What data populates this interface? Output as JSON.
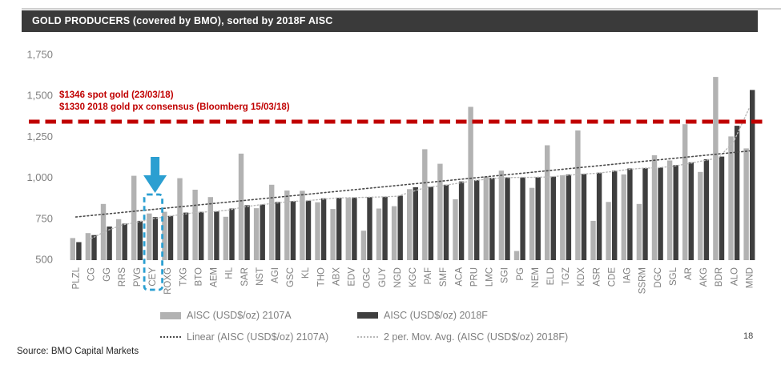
{
  "slide": {
    "title": "GOLD PRODUCERS (covered by BMO), sorted by 2018F AISC",
    "source": "Source: BMO Capital Markets",
    "page_number": "18"
  },
  "annotations": {
    "spot_gold": "$1346 spot gold (23/03/18)",
    "consensus": "$1330 2018 gold px consensus (Bloomberg 15/03/18)"
  },
  "legend": {
    "series_2017a": "AISC (USD$/oz) 2107A",
    "series_2018f": "AISC (USD$/oz) 2018F",
    "linear": "Linear (AISC (USD$/oz) 2107A)",
    "mov_avg": "2 per. Mov. Avg. (AISC (USD$/oz) 2018F)"
  },
  "highlight": {
    "category": "CEY"
  },
  "colors": {
    "title_bar_bg": "#3a3a3a",
    "bar_2017a": "#b2b2b2",
    "bar_2018f": "#3f3f3f",
    "reference_line": "#C00000",
    "highlight_blue": "#2B9FD1",
    "axis_text": "#7f7f7f",
    "trend_linear": "#4a4a4a",
    "trend_mov_avg": "#b8b8b8"
  },
  "chart_data": {
    "type": "bar",
    "title": "GOLD PRODUCERS (covered by BMO), sorted by 2018F AISC",
    "xlabel": "",
    "ylabel": "AISC (USD$/oz)",
    "ylim": [
      500,
      1750
    ],
    "y_ticks": [
      500,
      750,
      1000,
      1250,
      1500,
      1750
    ],
    "grid": false,
    "legend_position": "bottom",
    "categories": [
      "PLZL",
      "CG",
      "GG",
      "RRS",
      "PVG",
      "CEY",
      "ROXG",
      "TXG",
      "BTO",
      "AEM",
      "HL",
      "SAR",
      "NST",
      "AGI",
      "GSC",
      "KL",
      "THO",
      "ABX",
      "EDV",
      "OGC",
      "GUY",
      "NGD",
      "KGC",
      "PAF",
      "SMF",
      "ACA",
      "PRU",
      "LMC",
      "SGI",
      "PG",
      "NEM",
      "ELD",
      "TGZ",
      "KDX",
      "ASR",
      "CDE",
      "IAG",
      "SSRM",
      "DGC",
      "SGL",
      "AR",
      "AKG",
      "BDR",
      "ALO",
      "MND"
    ],
    "series": [
      {
        "name": "AISC (USD$/oz) 2107A",
        "values": [
          630,
          660,
          838,
          745,
          1010,
          780,
          790,
          995,
          925,
          880,
          760,
          1145,
          812,
          955,
          920,
          918,
          848,
          807,
          875,
          675,
          810,
          824,
          928,
          1172,
          1083,
          866,
          1430,
          1005,
          1041,
          551,
          936,
          1196,
          1013,
          1286,
          735,
          850,
          1018,
          838,
          1135,
          1103,
          1324,
          1033,
          1613,
          1250,
          1177
        ]
      },
      {
        "name": "AISC (USD$/oz) 2018F",
        "values": [
          605,
          648,
          700,
          718,
          735,
          758,
          765,
          785,
          790,
          792,
          810,
          830,
          835,
          850,
          856,
          858,
          872,
          876,
          877,
          880,
          882,
          888,
          940,
          943,
          955,
          975,
          984,
          997,
          1000,
          1000,
          1001,
          1005,
          1018,
          1021,
          1029,
          1041,
          1054,
          1057,
          1060,
          1075,
          1092,
          1111,
          1127,
          1315,
          1533
        ]
      }
    ],
    "trendlines": [
      {
        "name": "Linear (AISC (USD$/oz) 2107A)",
        "basis": "AISC (USD$/oz) 2107A",
        "kind": "linear"
      },
      {
        "name": "2 per. Mov. Avg. (AISC (USD$/oz) 2018F)",
        "basis": "AISC (USD$/oz) 2018F",
        "kind": "moving_average",
        "period": 2
      }
    ],
    "reference_line": {
      "value": 1340,
      "label": "gold price",
      "style": "dashed",
      "color": "#C00000"
    }
  }
}
